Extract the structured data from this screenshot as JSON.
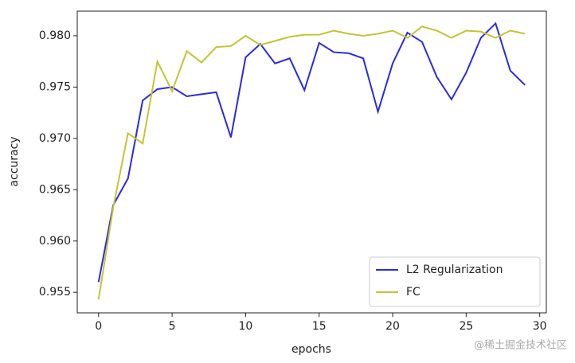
{
  "chart_data": {
    "type": "line",
    "xlabel": "epochs",
    "ylabel": "accuracy",
    "x": [
      0,
      1,
      2,
      3,
      4,
      5,
      6,
      7,
      8,
      9,
      10,
      11,
      12,
      13,
      14,
      15,
      16,
      17,
      18,
      19,
      20,
      21,
      22,
      23,
      24,
      25,
      26,
      27,
      28,
      29
    ],
    "series": [
      {
        "name": "L2 Regularization",
        "color": "#2a2ae6",
        "values": [
          0.956,
          0.9635,
          0.9661,
          0.9737,
          0.9748,
          0.975,
          0.9741,
          0.9743,
          0.9745,
          0.9701,
          0.9779,
          0.9792,
          0.9773,
          0.9778,
          0.9747,
          0.9793,
          0.9784,
          0.9783,
          0.9778,
          0.9726,
          0.9773,
          0.9803,
          0.9794,
          0.976,
          0.9738,
          0.9764,
          0.9798,
          0.9812,
          0.9766,
          0.9752
        ]
      },
      {
        "name": "FC",
        "color": "#c4c435",
        "values": [
          0.9543,
          0.9633,
          0.9705,
          0.9695,
          0.9775,
          0.9746,
          0.9785,
          0.9774,
          0.9789,
          0.979,
          0.98,
          0.9791,
          0.9795,
          0.9799,
          0.9801,
          0.9801,
          0.9805,
          0.9802,
          0.98,
          0.9802,
          0.9805,
          0.9798,
          0.9809,
          0.9805,
          0.9798,
          0.9805,
          0.9804,
          0.9798,
          0.9805,
          0.9802
        ]
      }
    ],
    "xlim": [
      -1.45,
      30.45
    ],
    "xticks": [
      0,
      5,
      10,
      15,
      20,
      25,
      30
    ],
    "ylim": [
      0.953,
      0.9824
    ],
    "yticks": [
      0.955,
      {
        "value": 0.96,
        "label": "0.960"
      },
      0.965,
      {
        "value": 0.97,
        "label": "0.970"
      },
      0.975,
      {
        "value": 0.98,
        "label": "0.980"
      }
    ],
    "grid": false,
    "legend": "lower right",
    "watermark": "@稀土掘金技术社区"
  }
}
